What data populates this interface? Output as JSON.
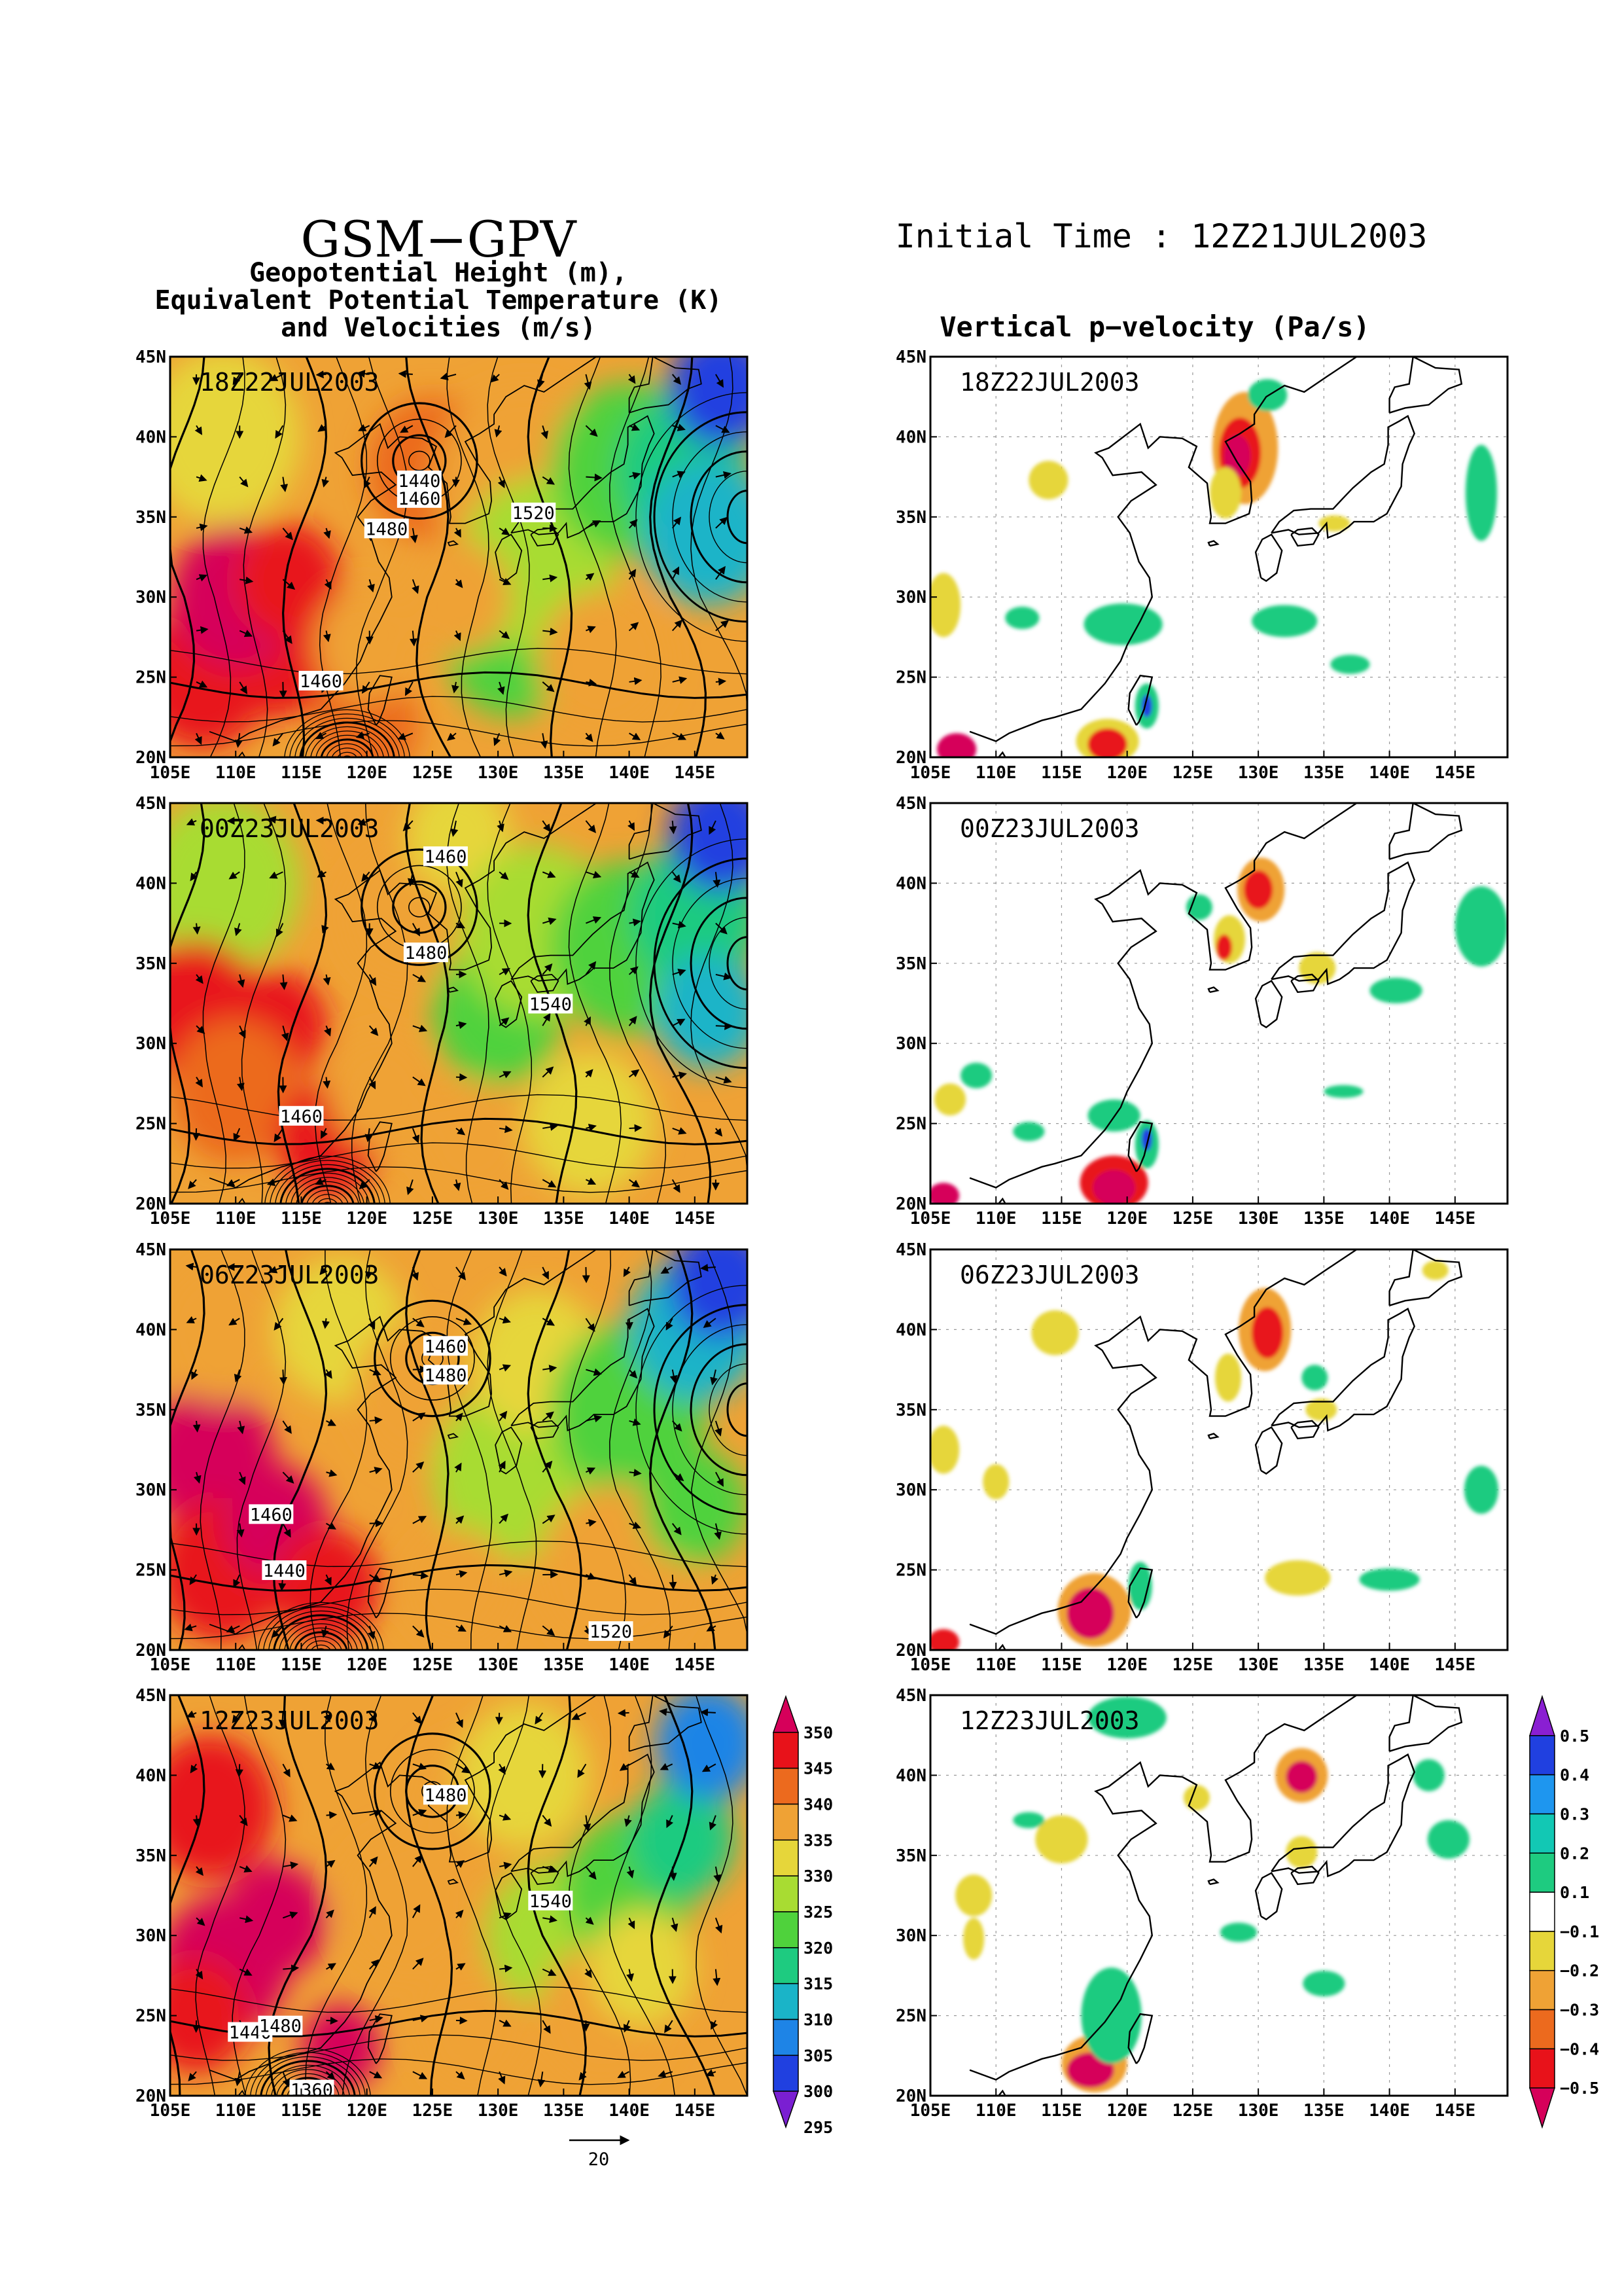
{
  "header": {
    "title": "GSM−GPV",
    "subtitle_lines": [
      "Geopotential Height (m),",
      "Equivalent Potential Temperature (K)",
      "and Velocities (m/s)"
    ],
    "initial_time": "Initial Time : 12Z21JUL2003",
    "right_title": "Vertical p−velocity (Pa/s)"
  },
  "axes": {
    "lon_labels": [
      "105E",
      "110E",
      "115E",
      "120E",
      "125E",
      "130E",
      "135E",
      "140E",
      "145E"
    ],
    "lat_labels": [
      "20N",
      "25N",
      "30N",
      "35N",
      "40N",
      "45N"
    ]
  },
  "panels_left": [
    {
      "time": "18Z22JUL2003",
      "contour_labels": [
        {
          "text": "1440",
          "lon": 124,
          "lat": 37.2
        },
        {
          "text": "1460",
          "lon": 124,
          "lat": 36.1
        },
        {
          "text": "1480",
          "lon": 121.5,
          "lat": 34.2
        },
        {
          "text": "1520",
          "lon": 132.7,
          "lat": 35.2
        },
        {
          "text": "1460",
          "lon": 116.5,
          "lat": 24.7
        }
      ]
    },
    {
      "time": "00Z23JUL2003",
      "contour_labels": [
        {
          "text": "1460",
          "lon": 126,
          "lat": 41.6
        },
        {
          "text": "1480",
          "lon": 124.5,
          "lat": 35.6
        },
        {
          "text": "1540",
          "lon": 134,
          "lat": 32.4
        },
        {
          "text": "1460",
          "lon": 115,
          "lat": 25.4
        }
      ]
    },
    {
      "time": "06Z23JUL2003",
      "contour_labels": [
        {
          "text": "1460",
          "lon": 126,
          "lat": 38.9
        },
        {
          "text": "1480",
          "lon": 126,
          "lat": 37.1
        },
        {
          "text": "1460",
          "lon": 112.7,
          "lat": 28.4
        },
        {
          "text": "1440",
          "lon": 113.7,
          "lat": 24.9
        },
        {
          "text": "1520",
          "lon": 138.6,
          "lat": 21.1
        }
      ]
    },
    {
      "time": "12Z23JUL2003",
      "contour_labels": [
        {
          "text": "1480",
          "lon": 126,
          "lat": 38.7
        },
        {
          "text": "1540",
          "lon": 134,
          "lat": 32.1
        },
        {
          "text": "1440",
          "lon": 111.1,
          "lat": 23.9
        },
        {
          "text": "1480",
          "lon": 113.4,
          "lat": 24.3
        },
        {
          "text": "1360",
          "lon": 115.8,
          "lat": 20.3
        }
      ]
    }
  ],
  "panels_right": [
    {
      "time": "18Z22JUL2003"
    },
    {
      "time": "00Z23JUL2003"
    },
    {
      "time": "06Z23JUL2003"
    },
    {
      "time": "12Z23JUL2003"
    }
  ],
  "theta_colorbar": {
    "labels": [
      "350",
      "345",
      "340",
      "335",
      "330",
      "325",
      "320",
      "315",
      "310",
      "305",
      "300",
      "295"
    ],
    "colors": [
      "#d6005a",
      "#e8121a",
      "#ec6a1e",
      "#efa235",
      "#e6d63a",
      "#a8dc32",
      "#4fd23c",
      "#1ecb80",
      "#1ab4c8",
      "#1e84e6",
      "#2040e0",
      "#7a1fd2"
    ]
  },
  "omega_colorbar": {
    "labels": [
      "0.5",
      "0.4",
      "0.3",
      "0.2",
      "0.1",
      "−0.1",
      "−0.2",
      "−0.3",
      "−0.4",
      "−0.5"
    ],
    "colors": [
      "#8a1fd2",
      "#2040e0",
      "#1e96ef",
      "#12c8b4",
      "#1ecb80",
      "#ffffff",
      "#e6d63a",
      "#efa235",
      "#ec6a1e",
      "#e8121a",
      "#d6005a"
    ]
  },
  "vector_reference": {
    "label": "20"
  }
}
